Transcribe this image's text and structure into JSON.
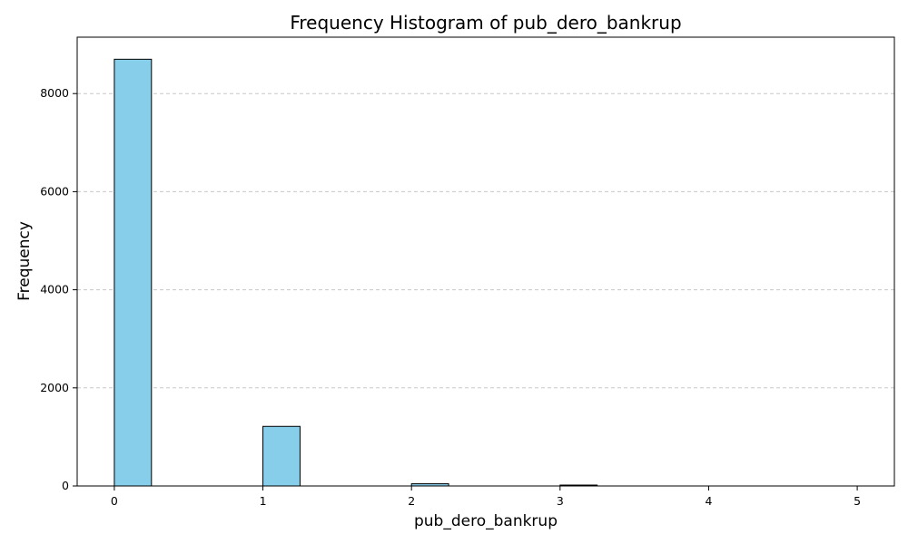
{
  "chart_data": {
    "type": "bar",
    "title": "Frequency Histogram of pub_dero_bankrup",
    "xlabel": "pub_dero_bankrup",
    "ylabel": "Frequency",
    "xlim": [
      -0.25,
      5.25
    ],
    "ylim": [
      0,
      9150
    ],
    "x_ticks": [
      0,
      1,
      2,
      3,
      4,
      5
    ],
    "y_ticks": [
      0,
      2000,
      4000,
      6000,
      8000
    ],
    "bins": [
      {
        "start": 0,
        "end": 0.25,
        "value": 8700
      },
      {
        "start": 1,
        "end": 1.25,
        "value": 1215
      },
      {
        "start": 2,
        "end": 2.25,
        "value": 45
      },
      {
        "start": 3,
        "end": 3.25,
        "value": 8
      }
    ],
    "grid": "y",
    "bar_color": "#87CEEB",
    "edge_color": "#000000"
  }
}
